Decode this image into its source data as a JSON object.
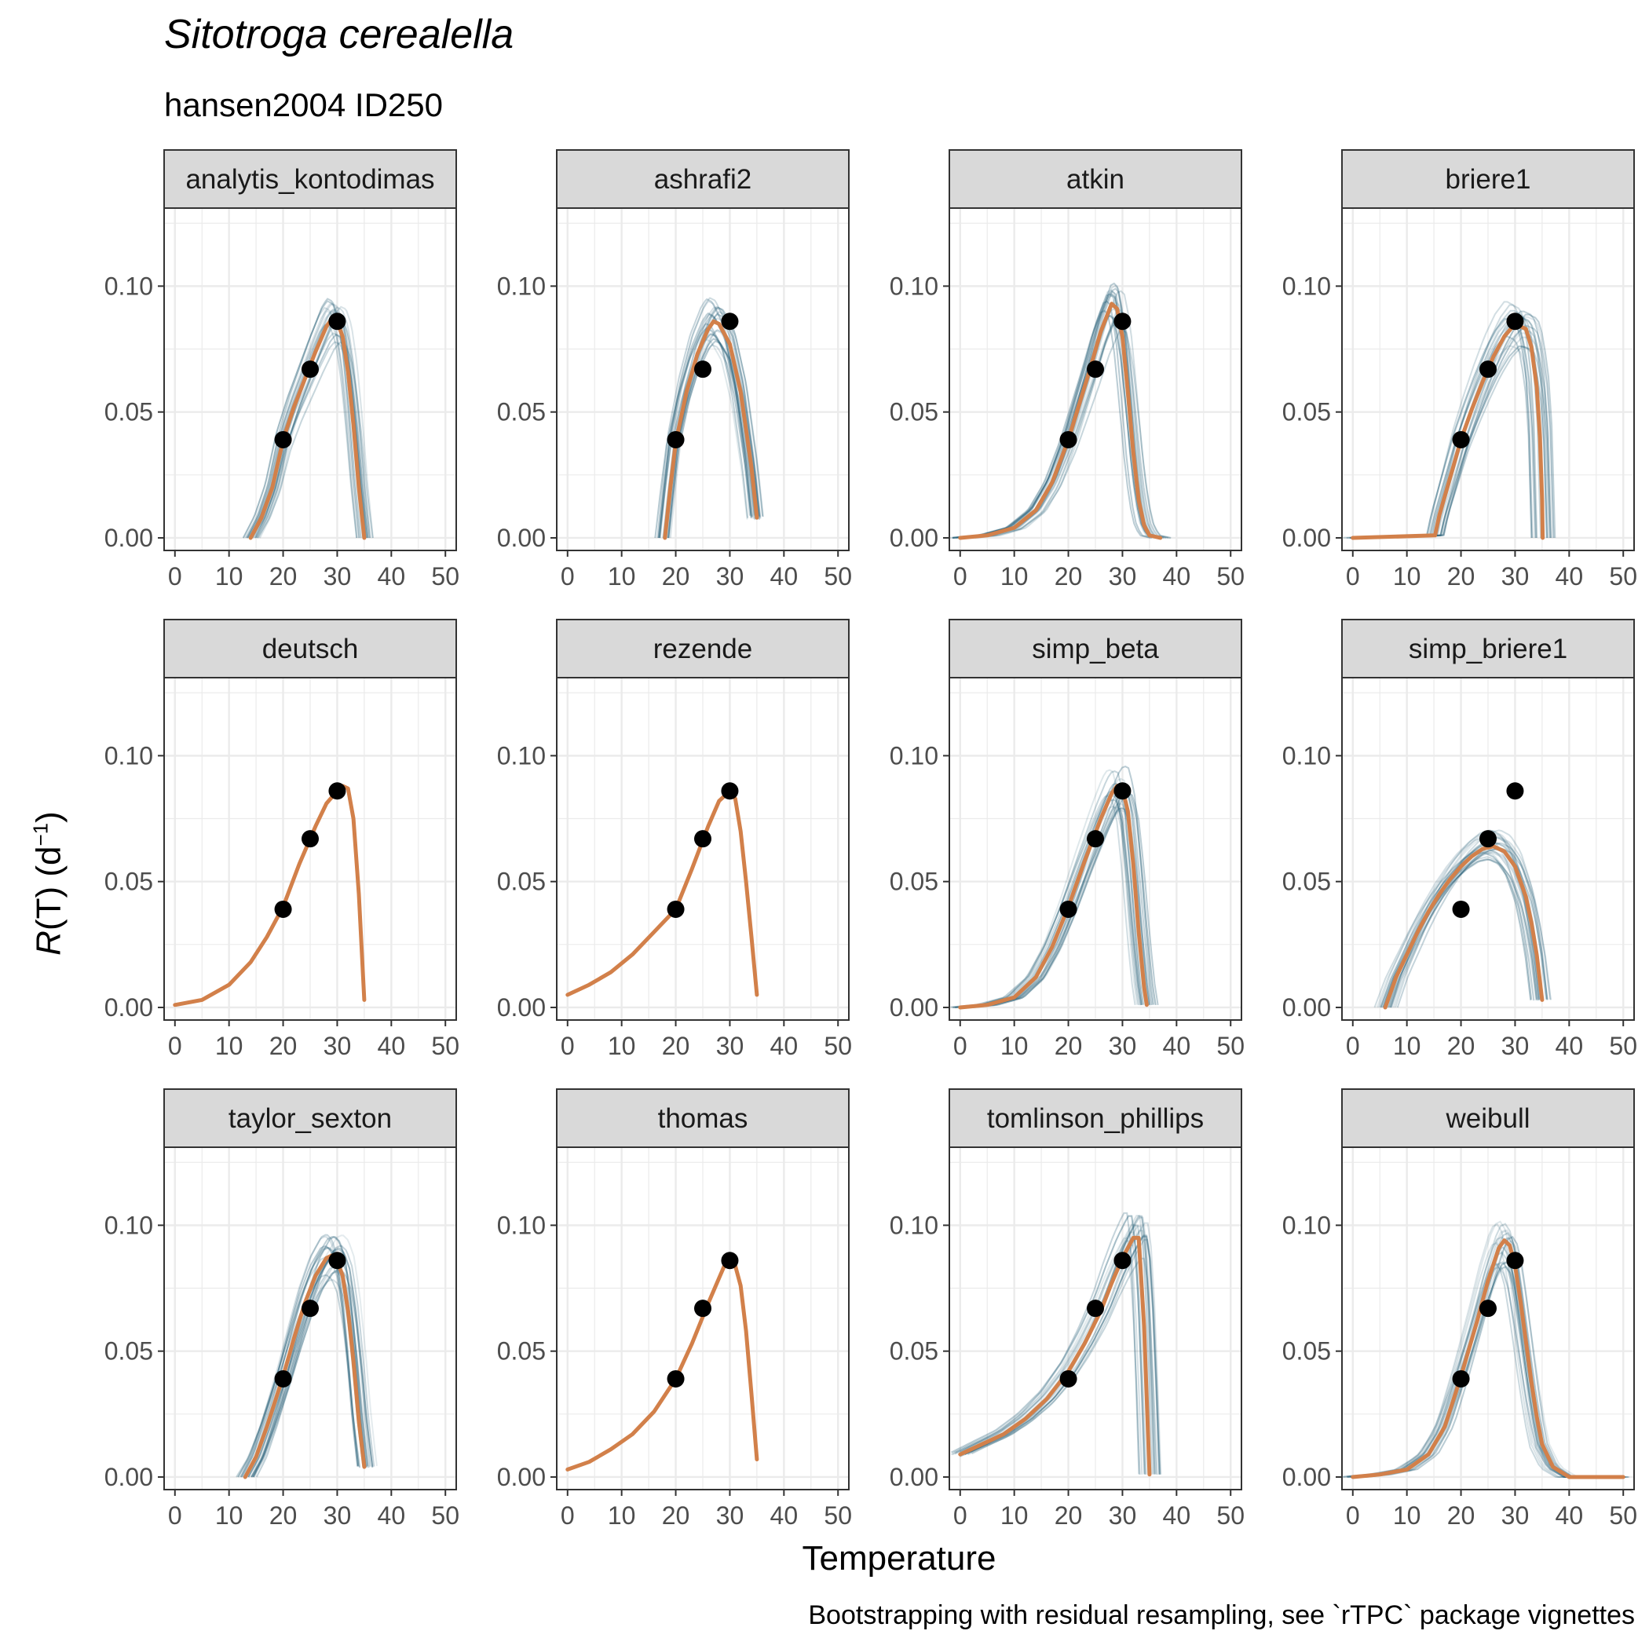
{
  "title": "Sitotroga cerealella",
  "subtitle": "hansen2004 ID250",
  "caption": "Bootstrapping with residual resampling, see `rTPC` package vignettes",
  "colors": {
    "fit": "#d2804a",
    "boot": "#1f5a73",
    "point": "#000000",
    "strip_bg": "#d9d9d9",
    "grid": "#ebebeb",
    "panel_border": "#333333"
  },
  "chart_data": {
    "type": "line",
    "facet": "small multiples",
    "xlabel": "Temperature",
    "ylabel": {
      "main": "R",
      "rest": "(T) (d",
      "sup": "−1",
      "end": ")"
    },
    "xlim": [
      -2,
      52
    ],
    "ylim": [
      -0.005,
      0.131
    ],
    "x_ticks": [
      0,
      10,
      20,
      30,
      40,
      50
    ],
    "x_tick_labels": [
      "0",
      "10",
      "20",
      "30",
      "40",
      "50"
    ],
    "y_ticks": [
      0.0,
      0.05,
      0.1
    ],
    "y_tick_labels": [
      "0.00",
      "0.05",
      "0.10"
    ],
    "observed_points": [
      {
        "x": 20,
        "y": 0.039
      },
      {
        "x": 25,
        "y": 0.067
      },
      {
        "x": 30,
        "y": 0.086
      }
    ],
    "panels": [
      {
        "name": "analytis_kontodimas",
        "fit": [
          [
            14,
            0
          ],
          [
            16,
            0.008
          ],
          [
            18,
            0.02
          ],
          [
            20,
            0.039
          ],
          [
            22,
            0.052
          ],
          [
            24,
            0.063
          ],
          [
            26,
            0.074
          ],
          [
            28,
            0.084
          ],
          [
            29,
            0.087
          ],
          [
            30,
            0.086
          ],
          [
            31,
            0.08
          ],
          [
            32,
            0.066
          ],
          [
            33,
            0.045
          ],
          [
            34,
            0.02
          ],
          [
            35,
            0
          ]
        ]
      },
      {
        "name": "ashrafi2",
        "fit": [
          [
            18,
            0
          ],
          [
            19,
            0.02
          ],
          [
            20,
            0.038
          ],
          [
            22,
            0.058
          ],
          [
            24,
            0.073
          ],
          [
            26,
            0.083
          ],
          [
            27,
            0.086
          ],
          [
            28,
            0.085
          ],
          [
            30,
            0.077
          ],
          [
            32,
            0.058
          ],
          [
            34,
            0.028
          ],
          [
            35,
            0.008
          ]
        ]
      },
      {
        "name": "atkin",
        "fit": [
          [
            0,
            0
          ],
          [
            5,
            0.001
          ],
          [
            10,
            0.004
          ],
          [
            14,
            0.011
          ],
          [
            17,
            0.022
          ],
          [
            20,
            0.039
          ],
          [
            22,
            0.053
          ],
          [
            24,
            0.067
          ],
          [
            26,
            0.082
          ],
          [
            28,
            0.093
          ],
          [
            29,
            0.091
          ],
          [
            30,
            0.08
          ],
          [
            31,
            0.058
          ],
          [
            32,
            0.034
          ],
          [
            33,
            0.015
          ],
          [
            34,
            0.005
          ],
          [
            35,
            0.001
          ],
          [
            37,
            0
          ]
        ]
      },
      {
        "name": "briere1",
        "fit": [
          [
            0,
            0
          ],
          [
            15.2,
            0.001
          ],
          [
            16,
            0.009
          ],
          [
            18,
            0.024
          ],
          [
            20,
            0.039
          ],
          [
            22,
            0.051
          ],
          [
            24,
            0.062
          ],
          [
            26,
            0.072
          ],
          [
            28,
            0.08
          ],
          [
            30,
            0.085
          ],
          [
            32,
            0.083
          ],
          [
            33,
            0.076
          ],
          [
            34,
            0.06
          ],
          [
            34.6,
            0.04
          ],
          [
            35,
            0.015
          ],
          [
            35.1,
            0
          ]
        ]
      },
      {
        "name": "deutsch",
        "fit": [
          [
            0,
            0.001
          ],
          [
            5,
            0.003
          ],
          [
            10,
            0.009
          ],
          [
            14,
            0.018
          ],
          [
            17,
            0.028
          ],
          [
            20,
            0.04
          ],
          [
            23,
            0.057
          ],
          [
            26,
            0.072
          ],
          [
            28,
            0.081
          ],
          [
            30,
            0.086
          ],
          [
            31,
            0.088
          ],
          [
            32,
            0.087
          ],
          [
            33,
            0.075
          ],
          [
            34,
            0.045
          ],
          [
            35,
            0.003
          ]
        ]
      },
      {
        "name": "rezende",
        "fit": [
          [
            0,
            0.005
          ],
          [
            4,
            0.009
          ],
          [
            8,
            0.014
          ],
          [
            12,
            0.021
          ],
          [
            16,
            0.03
          ],
          [
            20,
            0.039
          ],
          [
            23,
            0.055
          ],
          [
            26,
            0.072
          ],
          [
            28,
            0.082
          ],
          [
            30,
            0.086
          ],
          [
            31,
            0.083
          ],
          [
            32,
            0.07
          ],
          [
            33,
            0.05
          ],
          [
            34,
            0.028
          ],
          [
            35,
            0.005
          ]
        ]
      },
      {
        "name": "simp_beta",
        "fit": [
          [
            0,
            0
          ],
          [
            5,
            0.001
          ],
          [
            10,
            0.004
          ],
          [
            14,
            0.012
          ],
          [
            17,
            0.024
          ],
          [
            20,
            0.04
          ],
          [
            23,
            0.058
          ],
          [
            26,
            0.075
          ],
          [
            28,
            0.085
          ],
          [
            29,
            0.088
          ],
          [
            30,
            0.087
          ],
          [
            31,
            0.078
          ],
          [
            32,
            0.057
          ],
          [
            33,
            0.03
          ],
          [
            34,
            0.008
          ],
          [
            34.5,
            0.001
          ]
        ]
      },
      {
        "name": "simp_briere1",
        "fit": [
          [
            6,
            0
          ],
          [
            8,
            0.012
          ],
          [
            10,
            0.021
          ],
          [
            12,
            0.03
          ],
          [
            14,
            0.038
          ],
          [
            16,
            0.045
          ],
          [
            18,
            0.051
          ],
          [
            20,
            0.056
          ],
          [
            22,
            0.06
          ],
          [
            24,
            0.063
          ],
          [
            26,
            0.064
          ],
          [
            28,
            0.062
          ],
          [
            30,
            0.056
          ],
          [
            32,
            0.044
          ],
          [
            33,
            0.034
          ],
          [
            34,
            0.021
          ],
          [
            35,
            0.003
          ]
        ]
      },
      {
        "name": "taylor_sexton",
        "fit": [
          [
            13,
            0
          ],
          [
            15,
            0.008
          ],
          [
            17,
            0.02
          ],
          [
            20,
            0.04
          ],
          [
            22,
            0.055
          ],
          [
            24,
            0.069
          ],
          [
            26,
            0.08
          ],
          [
            28,
            0.087
          ],
          [
            29,
            0.088
          ],
          [
            30,
            0.086
          ],
          [
            31,
            0.08
          ],
          [
            32,
            0.066
          ],
          [
            33,
            0.046
          ],
          [
            34,
            0.022
          ],
          [
            35,
            0.004
          ]
        ]
      },
      {
        "name": "thomas",
        "fit": [
          [
            0,
            0.003
          ],
          [
            4,
            0.006
          ],
          [
            8,
            0.011
          ],
          [
            12,
            0.017
          ],
          [
            16,
            0.026
          ],
          [
            20,
            0.039
          ],
          [
            23,
            0.053
          ],
          [
            26,
            0.069
          ],
          [
            28,
            0.079
          ],
          [
            29,
            0.084
          ],
          [
            30,
            0.086
          ],
          [
            31,
            0.084
          ],
          [
            32,
            0.076
          ],
          [
            33,
            0.058
          ],
          [
            34,
            0.033
          ],
          [
            35,
            0.007
          ]
        ]
      },
      {
        "name": "tomlinson_phillips",
        "fit": [
          [
            0,
            0.009
          ],
          [
            4,
            0.013
          ],
          [
            8,
            0.017
          ],
          [
            12,
            0.023
          ],
          [
            16,
            0.031
          ],
          [
            20,
            0.042
          ],
          [
            23,
            0.053
          ],
          [
            26,
            0.066
          ],
          [
            28,
            0.077
          ],
          [
            30,
            0.087
          ],
          [
            32,
            0.095
          ],
          [
            33,
            0.095
          ],
          [
            34,
            0.06
          ],
          [
            35,
            0.001
          ]
        ]
      },
      {
        "name": "weibull",
        "fit": [
          [
            0,
            0
          ],
          [
            5,
            0.001
          ],
          [
            10,
            0.003
          ],
          [
            14,
            0.009
          ],
          [
            17,
            0.02
          ],
          [
            20,
            0.04
          ],
          [
            23,
            0.062
          ],
          [
            25,
            0.078
          ],
          [
            27,
            0.091
          ],
          [
            28,
            0.094
          ],
          [
            29,
            0.092
          ],
          [
            30,
            0.084
          ],
          [
            31,
            0.07
          ],
          [
            32,
            0.054
          ],
          [
            33,
            0.038
          ],
          [
            34,
            0.024
          ],
          [
            35,
            0.013
          ],
          [
            37,
            0.004
          ],
          [
            40,
            0
          ],
          [
            50,
            0
          ]
        ]
      }
    ]
  }
}
